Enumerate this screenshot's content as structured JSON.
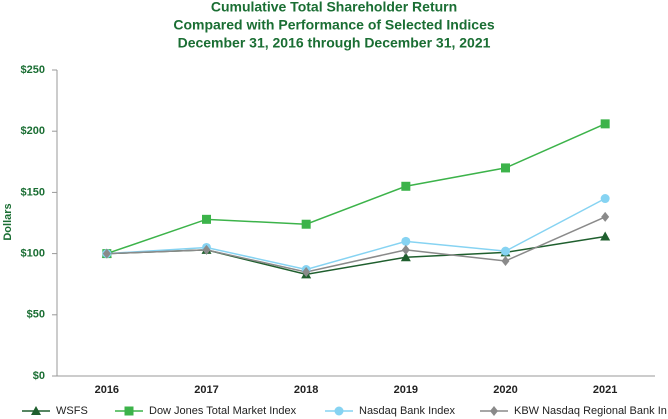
{
  "chart_data": {
    "type": "line",
    "title": "Cumulative Total Shareholder Return",
    "subtitle": "Compared with Performance of Selected Indices",
    "period": "December 31, 2016 through December 31, 2021",
    "y_label": "Dollars",
    "categories": [
      "2016",
      "2017",
      "2018",
      "2019",
      "2020",
      "2021"
    ],
    "series": [
      {
        "name": "WSFS",
        "color": "#1f5f2e",
        "marker": "triangle",
        "values": [
          100,
          103,
          83,
          97,
          101,
          114
        ]
      },
      {
        "name": "Dow Jones Total Market Index",
        "color": "#3cb34a",
        "marker": "square",
        "values": [
          100,
          128,
          124,
          155,
          170,
          206
        ]
      },
      {
        "name": "Nasdaq Bank Index",
        "color": "#86d3f2",
        "marker": "circle",
        "values": [
          100,
          105,
          87,
          110,
          102,
          145
        ]
      },
      {
        "name": "KBW Nasdaq Regional Bank In",
        "color": "#8a8a8a",
        "marker": "diamond",
        "values": [
          100,
          103,
          85,
          103,
          94,
          130
        ]
      }
    ],
    "ylim": [
      0,
      250
    ],
    "yticks": [
      {
        "value": 0,
        "label": "$0"
      },
      {
        "value": 50,
        "label": "$50"
      },
      {
        "value": 100,
        "label": "$100"
      },
      {
        "value": 150,
        "label": "$150"
      },
      {
        "value": 200,
        "label": "$200"
      },
      {
        "value": 250,
        "label": "$250"
      }
    ],
    "grid": false,
    "legend": "bottom"
  }
}
